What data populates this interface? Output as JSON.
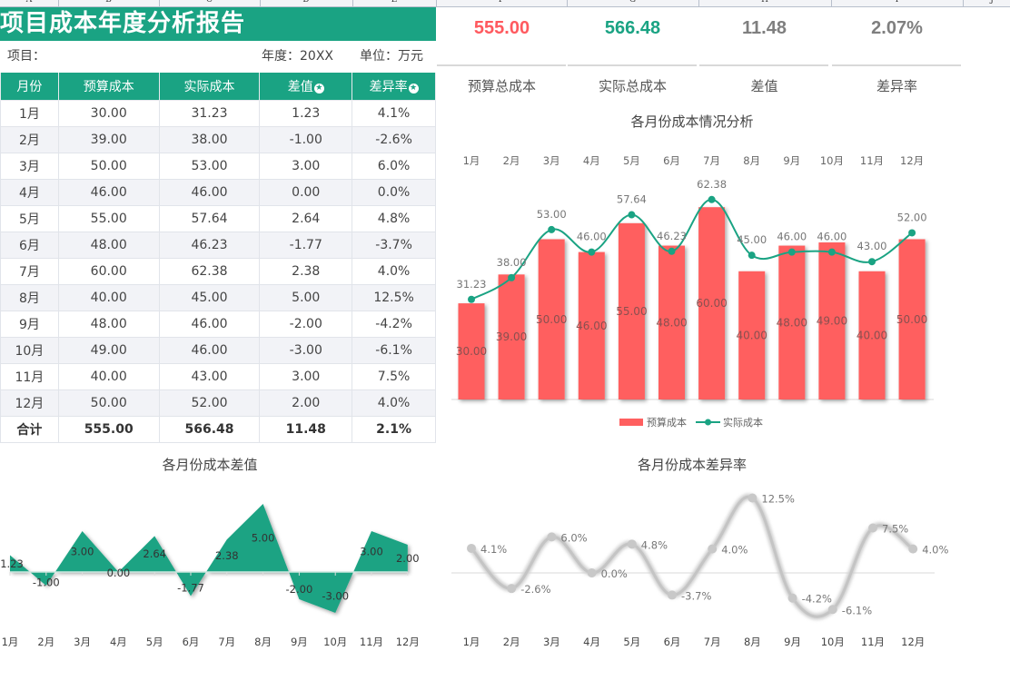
{
  "sheet": {
    "columns": [
      "A",
      "B",
      "C",
      "D",
      "E",
      "F",
      "G",
      "H",
      "I",
      "J"
    ]
  },
  "report": {
    "title": "项目成本年度分析报告",
    "project_label": "项目：",
    "year_label": "年度：20XX",
    "unit_label": "单位：万元"
  },
  "table": {
    "headers": [
      "月份",
      "预算成本",
      "实际成本",
      "差值",
      "差异率"
    ],
    "header_icon": "circled-star-icon",
    "rows": [
      [
        "1月",
        "30.00",
        "31.23",
        "1.23",
        "4.1%"
      ],
      [
        "2月",
        "39.00",
        "38.00",
        "-1.00",
        "-2.6%"
      ],
      [
        "3月",
        "50.00",
        "53.00",
        "3.00",
        "6.0%"
      ],
      [
        "4月",
        "46.00",
        "46.00",
        "0.00",
        "0.0%"
      ],
      [
        "5月",
        "55.00",
        "57.64",
        "2.64",
        "4.8%"
      ],
      [
        "6月",
        "48.00",
        "46.23",
        "-1.77",
        "-3.7%"
      ],
      [
        "7月",
        "60.00",
        "62.38",
        "2.38",
        "4.0%"
      ],
      [
        "8月",
        "40.00",
        "45.00",
        "5.00",
        "12.5%"
      ],
      [
        "9月",
        "48.00",
        "46.00",
        "-2.00",
        "-4.2%"
      ],
      [
        "10月",
        "49.00",
        "46.00",
        "-3.00",
        "-6.1%"
      ],
      [
        "11月",
        "40.00",
        "43.00",
        "3.00",
        "7.5%"
      ],
      [
        "12月",
        "50.00",
        "52.00",
        "2.00",
        "4.0%"
      ]
    ],
    "total": [
      "合计",
      "555.00",
      "566.48",
      "11.48",
      "2.1%"
    ]
  },
  "kpis": [
    {
      "value": "555.00",
      "label": "预算总成本",
      "color": "#ff5a5f"
    },
    {
      "value": "566.48",
      "label": "实际总成本",
      "color": "#1aa383"
    },
    {
      "value": "11.48",
      "label": "差值",
      "color": "#7f7f7f"
    },
    {
      "value": "2.07%",
      "label": "差异率",
      "color": "#7f7f7f"
    }
  ],
  "colors": {
    "brand_green": "#1aa383",
    "budget_red": "#ff5f5f",
    "rate_gray": "#c4c4c4"
  },
  "chart_data": [
    {
      "type": "bar",
      "title": "各月份成本情况分析",
      "categories": [
        "1月",
        "2月",
        "3月",
        "4月",
        "5月",
        "6月",
        "7月",
        "8月",
        "9月",
        "10月",
        "11月",
        "12月"
      ],
      "category_axis_position": "top",
      "series": [
        {
          "name": "预算成本",
          "type": "bar",
          "values": [
            30,
            39,
            50,
            46,
            55,
            48,
            60,
            40,
            48,
            49,
            40,
            50
          ],
          "labels": [
            "30.00",
            "39.00",
            "50.00",
            "46.00",
            "55.00",
            "48.00",
            "60.00",
            "40.00",
            "48.00",
            "49.00",
            "40.00",
            "50.00"
          ]
        },
        {
          "name": "实际成本",
          "type": "line",
          "smooth": true,
          "values": [
            31.23,
            38,
            53,
            46,
            57.64,
            46.23,
            62.38,
            45,
            46,
            46,
            43,
            52
          ],
          "labels": [
            "31.23",
            "38.00",
            "53.00",
            "46.00",
            "57.64",
            "46.23",
            "62.38",
            "45.00",
            "46.00",
            "46.00",
            "43.00",
            "52.00"
          ]
        }
      ],
      "legend": "bottom",
      "grid": false
    },
    {
      "type": "area",
      "title": "各月份成本差值",
      "categories": [
        "1月",
        "2月",
        "3月",
        "4月",
        "5月",
        "6月",
        "7月",
        "8月",
        "9月",
        "10月",
        "11月",
        "12月"
      ],
      "values": [
        1.23,
        -1,
        3,
        0,
        2.64,
        -1.77,
        2.38,
        5,
        -2,
        -3,
        3,
        2
      ],
      "labels": [
        "1.23",
        "-1.00",
        "3.00",
        "0.00",
        "2.64",
        "-1.77",
        "2.38",
        "5.00",
        "-2.00",
        "-3.00",
        "3.00",
        "2.00"
      ],
      "grid": false
    },
    {
      "type": "line",
      "title": "各月份成本差异率",
      "smooth": true,
      "categories": [
        "1月",
        "2月",
        "3月",
        "4月",
        "5月",
        "6月",
        "7月",
        "8月",
        "9月",
        "10月",
        "11月",
        "12月"
      ],
      "values": [
        4.1,
        -2.6,
        6.0,
        0.0,
        4.8,
        -3.7,
        4.0,
        12.5,
        -4.2,
        -6.1,
        7.5,
        4.0
      ],
      "labels": [
        "4.1%",
        "-2.6%",
        "6.0%",
        "0.0%",
        "4.8%",
        "-3.7%",
        "4.0%",
        "12.5%",
        "-4.2%",
        "-6.1%",
        "7.5%",
        "4.0%"
      ],
      "grid": false
    }
  ]
}
